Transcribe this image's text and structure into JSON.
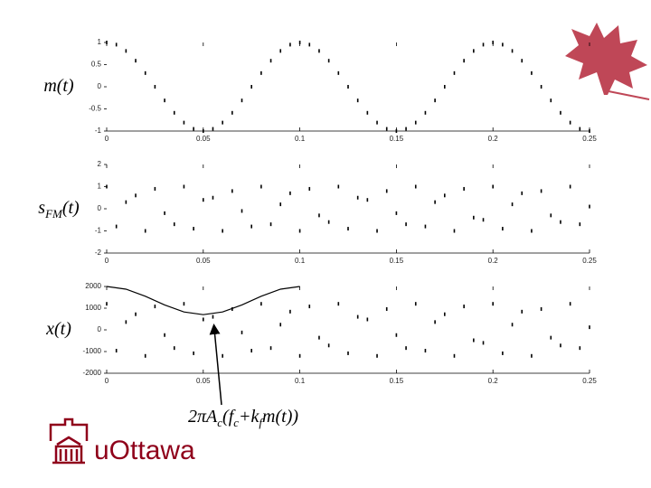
{
  "chart_data": [
    {
      "type": "scatter",
      "ylabel": [
        "m(t)"
      ],
      "xlim": [
        0,
        0.25
      ],
      "ylim": [
        -1,
        1
      ],
      "xticks": [
        0,
        0.05,
        0.1,
        0.15,
        0.2,
        0.25
      ],
      "yticks": [
        -1,
        -0.5,
        0,
        0.5,
        1
      ],
      "x": [
        0,
        0.005,
        0.01,
        0.015,
        0.02,
        0.025,
        0.03,
        0.035,
        0.04,
        0.045,
        0.05,
        0.055,
        0.06,
        0.065,
        0.07,
        0.075,
        0.08,
        0.085,
        0.09,
        0.095,
        0.1,
        0.105,
        0.11,
        0.115,
        0.12,
        0.125,
        0.13,
        0.135,
        0.14,
        0.145,
        0.15,
        0.155,
        0.16,
        0.165,
        0.17,
        0.175,
        0.18,
        0.185,
        0.19,
        0.195,
        0.2,
        0.205,
        0.21,
        0.215,
        0.22,
        0.225,
        0.23,
        0.235,
        0.24,
        0.245,
        0.25
      ],
      "series": [
        {
          "color": "#000000",
          "style": "dots",
          "values": [
            1,
            0.951,
            0.809,
            0.588,
            0.309,
            0,
            -0.309,
            -0.588,
            -0.809,
            -0.951,
            -1,
            -0.951,
            -0.809,
            -0.588,
            -0.309,
            0,
            0.309,
            0.588,
            0.809,
            0.951,
            1,
            0.951,
            0.809,
            0.588,
            0.309,
            0,
            -0.309,
            -0.588,
            -0.809,
            -0.951,
            -1,
            -0.951,
            -0.809,
            -0.588,
            -0.309,
            0,
            0.309,
            0.588,
            0.809,
            0.951,
            1,
            0.951,
            0.809,
            0.588,
            0.309,
            0,
            -0.309,
            -0.588,
            -0.809,
            -0.951,
            -1
          ]
        }
      ]
    },
    {
      "type": "scatter",
      "ylabel": [
        "s",
        "FM",
        "(t)"
      ],
      "xlim": [
        0,
        0.25
      ],
      "ylim": [
        -2,
        2
      ],
      "xticks": [
        0,
        0.05,
        0.1,
        0.15,
        0.2,
        0.25
      ],
      "yticks": [
        -2,
        -1,
        0,
        1,
        2
      ],
      "x": [
        0,
        0.005,
        0.01,
        0.015,
        0.02,
        0.025,
        0.03,
        0.035,
        0.04,
        0.045,
        0.05,
        0.055,
        0.06,
        0.065,
        0.07,
        0.075,
        0.08,
        0.085,
        0.09,
        0.095,
        0.1,
        0.105,
        0.11,
        0.115,
        0.12,
        0.125,
        0.13,
        0.135,
        0.14,
        0.145,
        0.15,
        0.155,
        0.16,
        0.165,
        0.17,
        0.175,
        0.18,
        0.185,
        0.19,
        0.195,
        0.2,
        0.205,
        0.21,
        0.215,
        0.22,
        0.225,
        0.23,
        0.235,
        0.24,
        0.245,
        0.25
      ],
      "series": [
        {
          "color": "#000000",
          "style": "dots",
          "values": [
            1,
            -0.8,
            0.3,
            0.6,
            -1,
            0.9,
            -0.2,
            -0.7,
            1,
            -0.9,
            0.4,
            0.5,
            -1,
            0.8,
            -0.1,
            -0.8,
            1,
            -0.7,
            0.2,
            0.7,
            -1,
            0.9,
            -0.3,
            -0.6,
            1,
            -0.9,
            0.5,
            0.4,
            -1,
            0.8,
            -0.2,
            -0.7,
            1,
            -0.8,
            0.3,
            0.6,
            -1,
            0.9,
            -0.4,
            -0.5,
            1,
            -0.9,
            0.2,
            0.7,
            -1,
            0.8,
            -0.3,
            -0.6,
            1,
            -0.7,
            0.1
          ]
        }
      ]
    },
    {
      "type": "scatter",
      "ylabel": [
        "x(t)"
      ],
      "xlim": [
        0,
        0.25
      ],
      "ylim": [
        -2000,
        2000
      ],
      "xticks": [
        0,
        0.05,
        0.1,
        0.15,
        0.2,
        0.25
      ],
      "yticks": [
        -2000,
        -1000,
        0,
        1000,
        2000
      ],
      "x": [
        0,
        0.005,
        0.01,
        0.015,
        0.02,
        0.025,
        0.03,
        0.035,
        0.04,
        0.045,
        0.05,
        0.055,
        0.06,
        0.065,
        0.07,
        0.075,
        0.08,
        0.085,
        0.09,
        0.095,
        0.1,
        0.105,
        0.11,
        0.115,
        0.12,
        0.125,
        0.13,
        0.135,
        0.14,
        0.145,
        0.15,
        0.155,
        0.16,
        0.165,
        0.17,
        0.175,
        0.18,
        0.185,
        0.19,
        0.195,
        0.2,
        0.205,
        0.21,
        0.215,
        0.22,
        0.225,
        0.23,
        0.235,
        0.24,
        0.245,
        0.25
      ],
      "series": [
        {
          "color": "#000000",
          "style": "dots",
          "values": [
            1200,
            -960,
            360,
            720,
            -1200,
            1080,
            -240,
            -840,
            1200,
            -1080,
            480,
            600,
            -1200,
            960,
            -120,
            -960,
            1200,
            -840,
            240,
            840,
            -1200,
            1080,
            -360,
            -720,
            1200,
            -1080,
            600,
            480,
            -1200,
            960,
            -240,
            -840,
            1200,
            -960,
            360,
            720,
            -1200,
            1080,
            -480,
            -600,
            1200,
            -1080,
            240,
            840,
            -1200,
            960,
            -360,
            -720,
            1200,
            -840,
            120
          ]
        },
        {
          "color": "#000000",
          "style": "line",
          "x": [
            0,
            0.01,
            0.02,
            0.03,
            0.04,
            0.05,
            0.06,
            0.07,
            0.08,
            0.09,
            0.1
          ],
          "values": [
            2000,
            1876,
            1551,
            1149,
            824,
            700,
            824,
            1149,
            1551,
            1876,
            2000
          ]
        }
      ],
      "annotation": [
        "2πA",
        "c",
        "(f",
        "c",
        "+k",
        "f",
        "m(t))"
      ]
    }
  ],
  "logo": "uOttawa"
}
